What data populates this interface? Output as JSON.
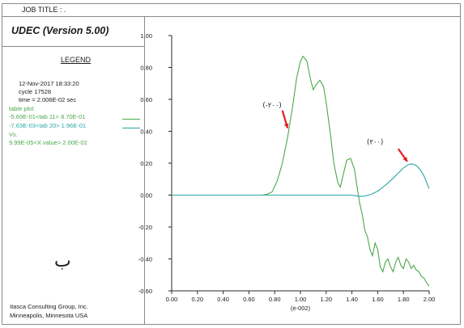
{
  "header": {
    "job_title": "JOB TITLE : ."
  },
  "panel": {
    "app_title": "UDEC (Version 5.00)",
    "legend_title": "LEGEND",
    "date_line": "12-Nov-2017  18:33:20",
    "cycle_line": "cycle   17528",
    "time_line": "time  =  2.006E-02 sec",
    "table_plot_label": "table plot",
    "series1_label": "-5.69E-01<tab  11> 8.70E-01",
    "series2_label": "-7.63E-03<tab  20> 1.96E-01",
    "vs_label": "Vs.",
    "xvalue_label": "9.99E-05<X value> 2.00E-02",
    "marker_letter": "ب",
    "company_line1": "Itasca Consulting Group, Inc.",
    "company_line2": "Minneapolis, Minnesota  USA"
  },
  "colors": {
    "series1": "#4aa84a",
    "series2": "#2aa6a6",
    "arrow": "#e02020",
    "axis": "#2a2a2a"
  },
  "chart_data": {
    "type": "line",
    "xlabel": "(e-002)",
    "xlim": [
      0,
      2
    ],
    "ylim": [
      -0.6,
      1.0
    ],
    "x_ticks": [
      "0.00",
      "0.20",
      "0.40",
      "0.60",
      "0.80",
      "1.00",
      "1.20",
      "1.40",
      "1.60",
      "1.80",
      "2.00"
    ],
    "y_ticks": [
      "1.00",
      "0.80",
      "0.60",
      "0.40",
      "0.20",
      "0.00",
      "-0.20",
      "-0.40",
      "-0.60"
    ],
    "series": [
      {
        "points": [
          [
            0,
            0
          ],
          [
            0.7,
            0
          ],
          [
            0.74,
            0.005
          ],
          [
            0.78,
            0.02
          ],
          [
            0.82,
            0.09
          ],
          [
            0.86,
            0.2
          ],
          [
            0.9,
            0.36
          ],
          [
            0.94,
            0.56
          ],
          [
            0.97,
            0.73
          ],
          [
            1.0,
            0.84
          ],
          [
            1.02,
            0.87
          ],
          [
            1.05,
            0.84
          ],
          [
            1.08,
            0.72
          ],
          [
            1.1,
            0.66
          ],
          [
            1.12,
            0.69
          ],
          [
            1.15,
            0.72
          ],
          [
            1.18,
            0.68
          ],
          [
            1.2,
            0.58
          ],
          [
            1.23,
            0.4
          ],
          [
            1.26,
            0.2
          ],
          [
            1.29,
            0.08
          ],
          [
            1.31,
            0.05
          ],
          [
            1.33,
            0.12
          ],
          [
            1.36,
            0.22
          ],
          [
            1.39,
            0.23
          ],
          [
            1.42,
            0.16
          ],
          [
            1.44,
            0.05
          ],
          [
            1.46,
            -0.05
          ],
          [
            1.48,
            -0.12
          ],
          [
            1.5,
            -0.22
          ],
          [
            1.52,
            -0.26
          ],
          [
            1.54,
            -0.34
          ],
          [
            1.56,
            -0.38
          ],
          [
            1.58,
            -0.3
          ],
          [
            1.6,
            -0.34
          ],
          [
            1.62,
            -0.45
          ],
          [
            1.64,
            -0.48
          ],
          [
            1.66,
            -0.42
          ],
          [
            1.68,
            -0.4
          ],
          [
            1.7,
            -0.45
          ],
          [
            1.72,
            -0.48
          ],
          [
            1.74,
            -0.42
          ],
          [
            1.76,
            -0.39
          ],
          [
            1.78,
            -0.44
          ],
          [
            1.8,
            -0.46
          ],
          [
            1.82,
            -0.4
          ],
          [
            1.84,
            -0.42
          ],
          [
            1.86,
            -0.46
          ],
          [
            1.88,
            -0.44
          ],
          [
            1.9,
            -0.47
          ],
          [
            1.92,
            -0.48
          ],
          [
            1.94,
            -0.51
          ],
          [
            1.96,
            -0.52
          ],
          [
            1.98,
            -0.55
          ],
          [
            2.0,
            -0.57
          ]
        ]
      },
      {
        "points": [
          [
            0,
            0
          ],
          [
            1.38,
            0
          ],
          [
            1.42,
            -0.003
          ],
          [
            1.46,
            -0.008
          ],
          [
            1.5,
            -0.006
          ],
          [
            1.55,
            0.005
          ],
          [
            1.6,
            0.025
          ],
          [
            1.65,
            0.055
          ],
          [
            1.7,
            0.09
          ],
          [
            1.75,
            0.13
          ],
          [
            1.8,
            0.17
          ],
          [
            1.84,
            0.192
          ],
          [
            1.87,
            0.196
          ],
          [
            1.9,
            0.185
          ],
          [
            1.93,
            0.16
          ],
          [
            1.96,
            0.12
          ],
          [
            1.98,
            0.08
          ],
          [
            2.0,
            0.04
          ]
        ]
      }
    ],
    "annotations": [
      {
        "text": "(-۲۰۰)",
        "x": 0.78,
        "y": 0.55
      },
      {
        "text": "(۲۰۰)",
        "x": 1.58,
        "y": 0.32
      }
    ]
  }
}
